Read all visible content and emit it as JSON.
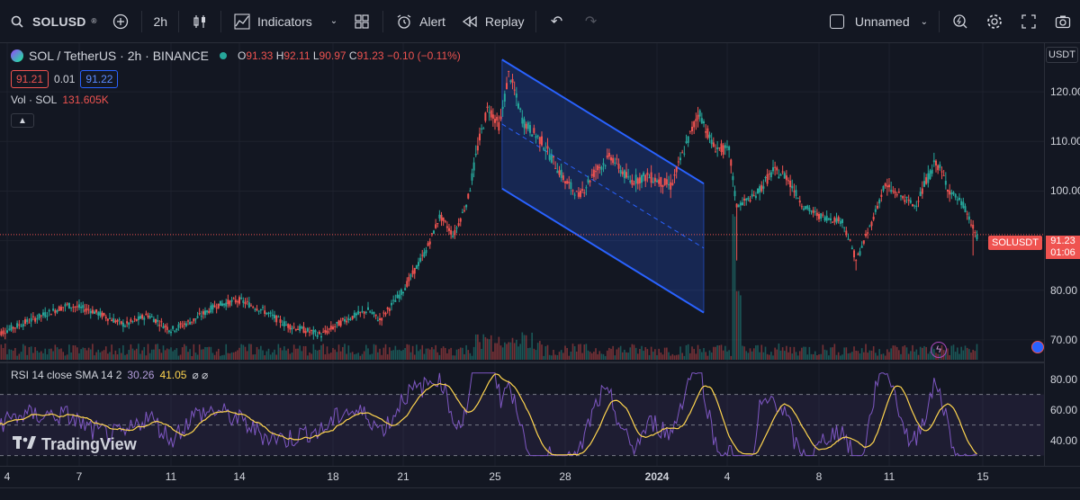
{
  "toolbar": {
    "symbol": "SOLUSD",
    "interval": "2h",
    "indicators_label": "Indicators",
    "alert_label": "Alert",
    "replay_label": "Replay",
    "layout_name": "Unnamed"
  },
  "legend": {
    "title": "SOL / TetherUS · 2h · BINANCE",
    "open_k": "O",
    "open": "91.33",
    "high_k": "H",
    "high": "92.11",
    "low_k": "L",
    "low": "90.97",
    "close_k": "C",
    "close": "91.23",
    "change": "−0.10 (−0.11%)",
    "bid": "91.21",
    "spread": "0.01",
    "ask": "91.22"
  },
  "volume": {
    "label": "Vol · SOL",
    "value": "131.605K"
  },
  "rsi": {
    "label": "RSI 14 close SMA 14 2",
    "rsi_value": "30.26",
    "sma_value": "41.05",
    "extra": "⌀ ⌀"
  },
  "price_axis": {
    "currency": "USDT",
    "ticks": [
      "120.00",
      "110.00",
      "100.00",
      "80.00",
      "70.00"
    ],
    "current_symbol": "SOLUSDT",
    "current_price": "91.23",
    "countdown": "01:06"
  },
  "rsi_axis": {
    "ticks": [
      "80.00",
      "60.00",
      "40.00"
    ]
  },
  "time_axis": {
    "labels": [
      {
        "t": "4",
        "x": 8
      },
      {
        "t": "7",
        "x": 88
      },
      {
        "t": "11",
        "x": 190
      },
      {
        "t": "14",
        "x": 266
      },
      {
        "t": "18",
        "x": 370
      },
      {
        "t": "21",
        "x": 448
      },
      {
        "t": "25",
        "x": 550
      },
      {
        "t": "28",
        "x": 628
      },
      {
        "t": "2024",
        "x": 730,
        "bold": true
      },
      {
        "t": "4",
        "x": 808
      },
      {
        "t": "8",
        "x": 910
      },
      {
        "t": "11",
        "x": 988
      },
      {
        "t": "15",
        "x": 1092
      }
    ]
  },
  "branding": {
    "logo_text": "TradingView"
  },
  "colors": {
    "up": "#26a69a",
    "down": "#ef5350",
    "channel": "#2962ff",
    "rsi": "#7e57c2",
    "rsi_sma": "#ffd54f",
    "bg": "#131722"
  },
  "chart_data": {
    "type": "candlestick",
    "y_range": [
      66,
      128
    ],
    "channel": {
      "upper": [
        [
          25.3,
          126.5
        ],
        [
          34,
          101.5
        ]
      ],
      "lower": [
        [
          25.3,
          100.5
        ],
        [
          34,
          75.5
        ]
      ],
      "mid": [
        [
          25.3,
          113.5
        ],
        [
          34,
          88.5
        ]
      ]
    },
    "current_price": 91.23,
    "rsi_range": [
      28,
      88
    ],
    "rsi_levels": [
      70,
      50,
      30
    ]
  }
}
